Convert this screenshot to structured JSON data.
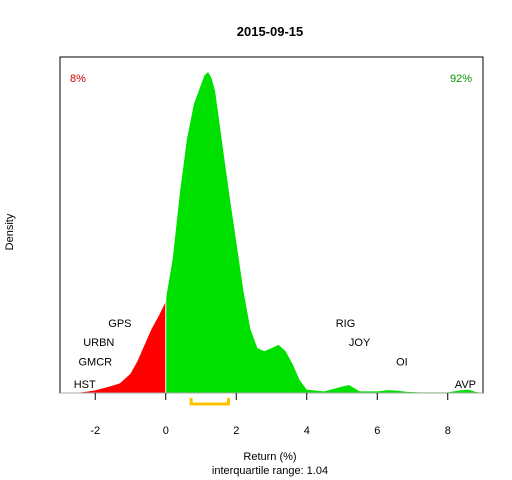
{
  "chart_data": {
    "type": "area",
    "title": "2015-09-15",
    "xlabel": "Return (%)",
    "ylabel": "Density",
    "subtitle": "interquartile range: 1.04",
    "xlim": [
      -3.0,
      9.0
    ],
    "xticks": [
      -2,
      0,
      2,
      4,
      6,
      8
    ],
    "ylim": [
      0,
      1.0
    ],
    "grid": false,
    "negative_share": "8%",
    "positive_share": "92%",
    "negative_color": "#ff0000",
    "positive_color": "#00e000",
    "negative_label_color": "#cc0000",
    "positive_label_color": "#009900",
    "iqr_color": "#ffc000",
    "iqr_range": [
      0.72,
      1.78
    ],
    "density": {
      "x": [
        -2.6,
        -2.3,
        -2.0,
        -1.6,
        -1.3,
        -1.0,
        -0.8,
        -0.6,
        -0.4,
        -0.2,
        -0.02,
        0.0,
        0.2,
        0.4,
        0.6,
        0.8,
        1.0,
        1.1,
        1.2,
        1.3,
        1.4,
        1.5,
        1.6,
        1.8,
        2.0,
        2.2,
        2.4,
        2.6,
        2.8,
        3.0,
        3.2,
        3.4,
        3.6,
        3.8,
        4.0,
        4.5,
        5.0,
        5.2,
        5.5,
        6.0,
        6.3,
        6.6,
        6.8,
        7.2,
        8.0,
        8.4,
        8.6,
        8.8,
        9.0
      ],
      "y": [
        0.0,
        0.003,
        0.008,
        0.02,
        0.03,
        0.06,
        0.1,
        0.15,
        0.2,
        0.24,
        0.28,
        0.29,
        0.42,
        0.62,
        0.79,
        0.9,
        0.96,
        0.99,
        1.0,
        0.98,
        0.94,
        0.86,
        0.78,
        0.62,
        0.47,
        0.32,
        0.2,
        0.14,
        0.13,
        0.14,
        0.15,
        0.13,
        0.09,
        0.04,
        0.01,
        0.005,
        0.02,
        0.025,
        0.005,
        0.005,
        0.009,
        0.007,
        0.004,
        0.002,
        0.002,
        0.009,
        0.01,
        0.003,
        0.0
      ]
    },
    "annotations": [
      {
        "label": "GPS",
        "x": -1.3,
        "y": 0.2
      },
      {
        "label": "URBN",
        "x": -1.9,
        "y": 0.14
      },
      {
        "label": "GMCR",
        "x": -2.0,
        "y": 0.08
      },
      {
        "label": "HST",
        "x": -2.3,
        "y": 0.01
      },
      {
        "label": "RIG",
        "x": 5.1,
        "y": 0.2
      },
      {
        "label": "JOY",
        "x": 5.5,
        "y": 0.14
      },
      {
        "label": "OI",
        "x": 6.7,
        "y": 0.08
      },
      {
        "label": "AVP",
        "x": 8.5,
        "y": 0.01
      }
    ]
  }
}
